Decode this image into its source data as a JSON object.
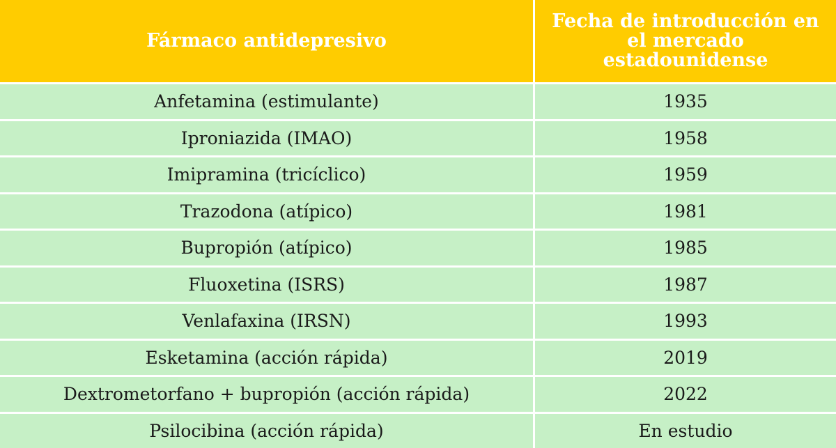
{
  "header": {
    "col1": "Fármaco antidepresivo",
    "col2": "Fecha de introducción en el mercado estadounidense"
  },
  "rows": [
    {
      "drug": "Anfetamina (estimulante)",
      "date": "1935"
    },
    {
      "drug": "Iproniazida (IMAO)",
      "date": "1958"
    },
    {
      "drug": "Imipramina (tricíclico)",
      "date": "1959"
    },
    {
      "drug": "Trazodona (atípico)",
      "date": "1981"
    },
    {
      "drug": "Bupropión (atípico)",
      "date": "1985"
    },
    {
      "drug": "Fluoxetina (ISRS)",
      "date": "1987"
    },
    {
      "drug": "Venlafaxina (IRSN)",
      "date": "1993"
    },
    {
      "drug": "Esketamina (acción rápida)",
      "date": "2019"
    },
    {
      "drug": "Dextrometorfano + bupropión (acción rápida)",
      "date": "2022"
    },
    {
      "drug": "Psilocibina (acción rápida)",
      "date": "En estudio"
    }
  ],
  "colors": {
    "header_bg": "#ffcc00",
    "row_bg": "#c6f0c6",
    "header_text": "#ffffff",
    "row_text": "#1a1a1a"
  }
}
